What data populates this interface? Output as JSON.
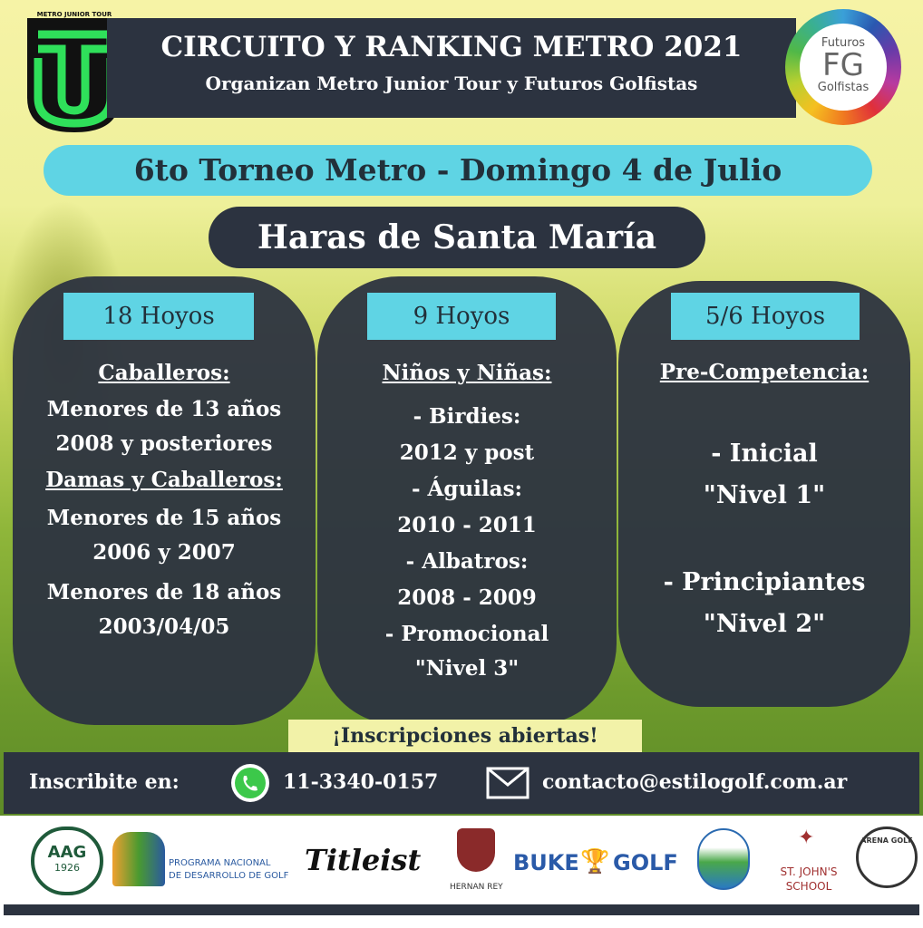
{
  "header": {
    "title": "CIRCUITO Y RANKING METRO 2021",
    "subtitle": "Organizan Metro Junior Tour y Futuros Golfistas"
  },
  "logo_left": {
    "text": "METRO JUNIOR TOUR"
  },
  "logo_right": {
    "top": "Futuros",
    "mid": "FG",
    "bottom": "Golfistas"
  },
  "event": "6to Torneo Metro - Domingo 4 de Julio",
  "venue": "Haras de Santa María",
  "columns": [
    {
      "label": "18 Hoyos",
      "lines": [
        "Caballeros:",
        "Menores de 13 años",
        "2008 y posteriores",
        "Damas y Caballeros:",
        "Menores de 15 años",
        "2006 y 2007",
        "Menores de 18 años",
        "2003/04/05"
      ]
    },
    {
      "label": "9 Hoyos",
      "lines": [
        "Niños y Niñas:",
        "- Birdies:",
        "2012 y post",
        "- Águilas:",
        "2010 - 2011",
        "- Albatros:",
        "2008 - 2009",
        "- Promocional",
        "\"Nivel 3\""
      ]
    },
    {
      "label": "5/6 Hoyos",
      "lines": [
        "Pre-Competencia:",
        "- Inicial",
        "\"Nivel 1\"",
        "- Principiantes",
        "\"Nivel 2\""
      ]
    }
  ],
  "inscripciones": "¡Inscripciones abiertas!",
  "contact": {
    "label": "Inscribite en:",
    "phone": "11-3340-0157",
    "email": "contacto@estilogolf.com.ar",
    "phone_icon": "whatsapp-icon",
    "email_icon": "envelope-icon"
  },
  "sponsors": {
    "aag": "AAG",
    "aag_year": "1926",
    "programa": "PROGRAMA NACIONAL",
    "programa2": "DE DESARROLLO DE GOLF",
    "titleist": "Titleist",
    "hernan": "HERNAN REY",
    "buke": "BUKE",
    "buke2": "GOLF",
    "stjohns": "ST. JOHN'S",
    "stjohns2": "SCHOOL",
    "arena": "ARENA GOLF"
  }
}
